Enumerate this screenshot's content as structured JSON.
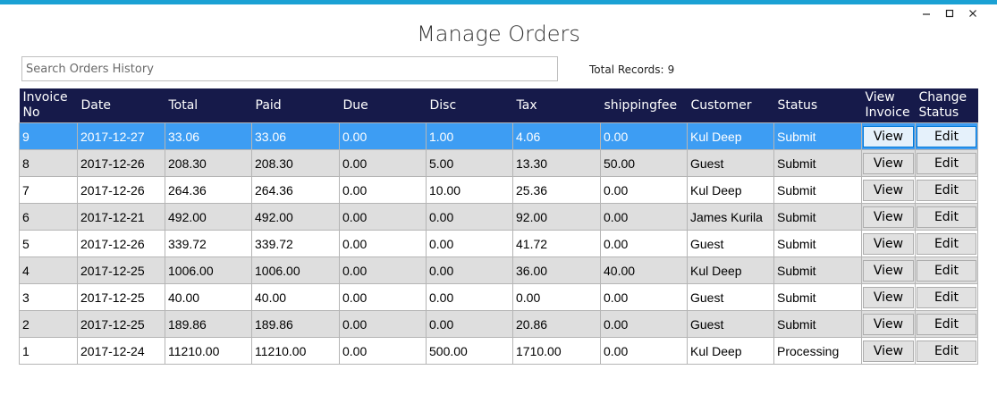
{
  "window": {
    "title": "Manage Orders",
    "minimize": "—",
    "accent_color": "#1ba1d4"
  },
  "search": {
    "placeholder": "Search Orders History",
    "value": ""
  },
  "total_records": {
    "label": "Total Records:",
    "value": "9"
  },
  "columns": [
    "Invoice No",
    "Date",
    "Total",
    "Paid",
    "Due",
    "Disc",
    "Tax",
    "shippingfee",
    "Customer",
    "Status",
    "View Invoice",
    "Change Status"
  ],
  "header_color": "#161a4a",
  "selected_color": "#3d9df3",
  "rows": [
    {
      "invoice": "9",
      "date": "2017-12-27",
      "total": "33.06",
      "paid": "33.06",
      "due": "0.00",
      "disc": "1.00",
      "tax": "4.06",
      "shipping": "0.00",
      "customer": "Kul Deep",
      "status": "Submit",
      "view": "View",
      "edit": "Edit"
    },
    {
      "invoice": "8",
      "date": "2017-12-26",
      "total": "208.30",
      "paid": "208.30",
      "due": "0.00",
      "disc": "5.00",
      "tax": "13.30",
      "shipping": "50.00",
      "customer": "Guest",
      "status": "Submit",
      "view": "View",
      "edit": "Edit"
    },
    {
      "invoice": "7",
      "date": "2017-12-26",
      "total": "264.36",
      "paid": "264.36",
      "due": "0.00",
      "disc": "10.00",
      "tax": "25.36",
      "shipping": "0.00",
      "customer": "Kul Deep",
      "status": "Submit",
      "view": "View",
      "edit": "Edit"
    },
    {
      "invoice": "6",
      "date": "2017-12-21",
      "total": "492.00",
      "paid": "492.00",
      "due": "0.00",
      "disc": "0.00",
      "tax": "92.00",
      "shipping": "0.00",
      "customer": "James Kurila",
      "status": "Submit",
      "view": "View",
      "edit": "Edit"
    },
    {
      "invoice": "5",
      "date": "2017-12-26",
      "total": "339.72",
      "paid": "339.72",
      "due": "0.00",
      "disc": "0.00",
      "tax": "41.72",
      "shipping": "0.00",
      "customer": "Guest",
      "status": "Submit",
      "view": "View",
      "edit": "Edit"
    },
    {
      "invoice": "4",
      "date": "2017-12-25",
      "total": "1006.00",
      "paid": "1006.00",
      "due": "0.00",
      "disc": "0.00",
      "tax": "36.00",
      "shipping": "40.00",
      "customer": "Kul Deep",
      "status": "Submit",
      "view": "View",
      "edit": "Edit"
    },
    {
      "invoice": "3",
      "date": "2017-12-25",
      "total": "40.00",
      "paid": "40.00",
      "due": "0.00",
      "disc": "0.00",
      "tax": "0.00",
      "shipping": "0.00",
      "customer": "Guest",
      "status": "Submit",
      "view": "View",
      "edit": "Edit"
    },
    {
      "invoice": "2",
      "date": "2017-12-25",
      "total": "189.86",
      "paid": "189.86",
      "due": "0.00",
      "disc": "0.00",
      "tax": "20.86",
      "shipping": "0.00",
      "customer": "Guest",
      "status": "Submit",
      "view": "View",
      "edit": "Edit"
    },
    {
      "invoice": "1",
      "date": "2017-12-24",
      "total": "11210.00",
      "paid": "11210.00",
      "due": "0.00",
      "disc": "500.00",
      "tax": "1710.00",
      "shipping": "0.00",
      "customer": "Kul Deep",
      "status": "Processing",
      "view": "View",
      "edit": "Edit"
    }
  ]
}
